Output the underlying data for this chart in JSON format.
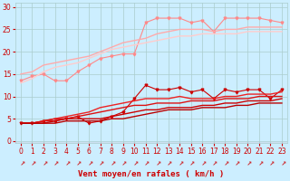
{
  "x": [
    0,
    1,
    2,
    3,
    4,
    5,
    6,
    7,
    8,
    9,
    10,
    11,
    12,
    13,
    14,
    15,
    16,
    17,
    18,
    19,
    20,
    21,
    22,
    23
  ],
  "background_color": "#cceeff",
  "grid_color": "#aacccc",
  "xlabel": "Vent moyen/en rafales ( km/h )",
  "xlabel_color": "#cc0000",
  "xlabel_fontsize": 6.5,
  "yticks": [
    0,
    5,
    10,
    15,
    20,
    25,
    30
  ],
  "ylim": [
    -0.5,
    31
  ],
  "xlim": [
    -0.5,
    23.5
  ],
  "lines_light": [
    {
      "y": [
        13.5,
        14.5,
        15.0,
        13.5,
        13.5,
        15.5,
        17.0,
        18.5,
        19.0,
        19.5,
        19.5,
        26.5,
        27.5,
        27.5,
        27.5,
        26.5,
        27.0,
        24.5,
        27.5,
        27.5,
        27.5,
        27.5,
        27.0,
        26.5
      ],
      "color": "#ff8888",
      "lw": 0.8,
      "marker": "v",
      "markersize": 2.0
    },
    {
      "y": [
        15.0,
        15.5,
        17.0,
        17.5,
        18.0,
        18.5,
        19.0,
        20.0,
        21.0,
        22.0,
        22.5,
        23.0,
        24.0,
        24.5,
        25.0,
        25.0,
        25.0,
        24.5,
        25.0,
        25.0,
        25.5,
        25.5,
        25.5,
        25.5
      ],
      "color": "#ffaaaa",
      "lw": 1.0,
      "marker": null,
      "markersize": 0
    },
    {
      "y": [
        13.0,
        14.0,
        15.5,
        16.5,
        17.0,
        17.5,
        18.5,
        19.5,
        20.5,
        21.0,
        21.5,
        22.0,
        22.5,
        23.0,
        23.5,
        23.5,
        24.0,
        24.0,
        24.0,
        24.0,
        24.5,
        24.5,
        24.5,
        24.5
      ],
      "color": "#ffcccc",
      "lw": 1.0,
      "marker": null,
      "markersize": 0
    }
  ],
  "lines_dark": [
    {
      "y": [
        4.0,
        4.0,
        4.5,
        4.5,
        5.0,
        5.5,
        4.0,
        4.5,
        5.5,
        6.5,
        9.5,
        12.5,
        11.5,
        11.5,
        12.0,
        11.0,
        11.5,
        9.5,
        11.5,
        11.0,
        11.5,
        11.5,
        9.5,
        11.5
      ],
      "color": "#cc0000",
      "lw": 0.8,
      "marker": "v",
      "markersize": 2.0
    },
    {
      "y": [
        4.0,
        4.0,
        4.5,
        5.0,
        5.5,
        6.0,
        6.5,
        7.5,
        8.0,
        8.5,
        9.0,
        9.5,
        9.5,
        9.5,
        10.0,
        9.5,
        9.5,
        9.5,
        10.0,
        10.0,
        10.5,
        10.5,
        10.5,
        11.0
      ],
      "color": "#ee2222",
      "lw": 1.0,
      "marker": null,
      "markersize": 0
    },
    {
      "y": [
        4.0,
        4.0,
        4.5,
        5.0,
        5.0,
        5.5,
        6.0,
        6.5,
        7.0,
        7.5,
        8.0,
        8.0,
        8.5,
        8.5,
        8.5,
        9.0,
        9.0,
        9.0,
        9.5,
        9.5,
        9.5,
        10.0,
        10.0,
        10.0
      ],
      "color": "#dd1111",
      "lw": 1.0,
      "marker": null,
      "markersize": 0
    },
    {
      "y": [
        4.0,
        4.0,
        4.0,
        4.5,
        5.0,
        5.0,
        5.0,
        5.0,
        5.5,
        6.0,
        6.5,
        7.0,
        7.0,
        7.5,
        7.5,
        7.5,
        8.0,
        8.0,
        8.5,
        8.5,
        9.0,
        9.0,
        9.0,
        9.5
      ],
      "color": "#cc0000",
      "lw": 1.0,
      "marker": null,
      "markersize": 0
    },
    {
      "y": [
        4.0,
        4.0,
        4.0,
        4.0,
        4.5,
        4.5,
        4.5,
        4.5,
        5.0,
        5.0,
        5.5,
        6.0,
        6.5,
        7.0,
        7.0,
        7.0,
        7.5,
        7.5,
        7.5,
        8.0,
        8.0,
        8.5,
        8.5,
        8.5
      ],
      "color": "#bb0000",
      "lw": 1.0,
      "marker": null,
      "markersize": 0
    }
  ],
  "tick_fontsize": 5.5,
  "tick_color": "#cc0000",
  "arrow_char": "←",
  "arrow_color": "#cc0000",
  "arrow_fontsize": 5.0
}
